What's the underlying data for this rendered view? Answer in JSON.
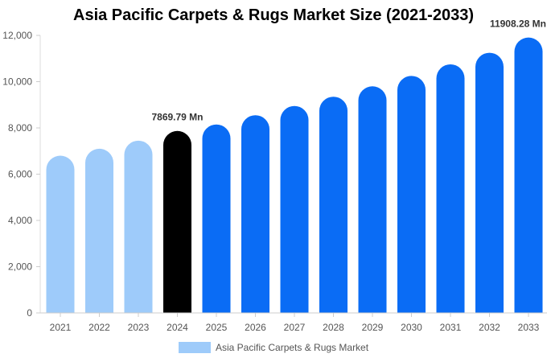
{
  "chart_data": {
    "type": "bar",
    "title": "Asia Pacific Carpets & Rugs Market Size (2021-2033)",
    "xlabel": "",
    "ylabel": "",
    "categories": [
      "2021",
      "2022",
      "2023",
      "2024",
      "2025",
      "2026",
      "2027",
      "2028",
      "2029",
      "2030",
      "2031",
      "2032",
      "2033"
    ],
    "series": [
      {
        "name": "Asia Pacific Carpets & Rugs Market",
        "values": [
          6800,
          7100,
          7450,
          7869.79,
          8150,
          8550,
          8950,
          9350,
          9800,
          10250,
          10750,
          11250,
          11908.28
        ]
      }
    ],
    "ylim": [
      0,
      12000
    ],
    "yticks": [
      0,
      2000,
      4000,
      6000,
      8000,
      10000,
      12000
    ],
    "ytick_labels": [
      "0",
      "2,000",
      "4,000",
      "6,000",
      "8,000",
      "10,000",
      "12,000"
    ],
    "data_labels": [
      {
        "category": "2024",
        "text": "7869.79 Mn"
      },
      {
        "category": "2033",
        "text": "11908.28 Mn"
      }
    ],
    "bar_colors": [
      "#9ecbfa",
      "#9ecbfa",
      "#9ecbfa",
      "#000000",
      "#0a6cf5",
      "#0a6cf5",
      "#0a6cf5",
      "#0a6cf5",
      "#0a6cf5",
      "#0a6cf5",
      "#0a6cf5",
      "#0a6cf5",
      "#0a6cf5"
    ],
    "legend": {
      "position": "bottom",
      "color": "#9ecbfa"
    },
    "grid": false
  }
}
